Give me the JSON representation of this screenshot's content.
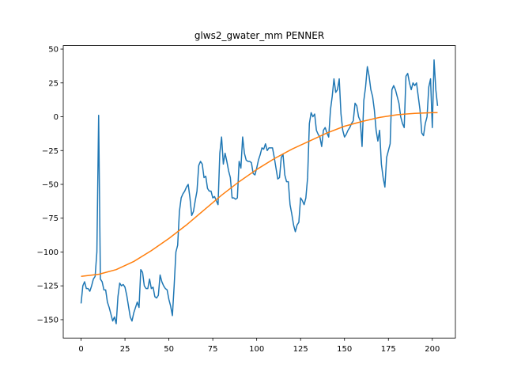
{
  "chart_data": {
    "type": "line",
    "title": "glws2_gwater_mm PENNER",
    "x": [
      0,
      1,
      2,
      3,
      4,
      5,
      6,
      7,
      8,
      9,
      10,
      11,
      12,
      13,
      14,
      15,
      16,
      17,
      18,
      19,
      20,
      21,
      22,
      23,
      24,
      25,
      26,
      27,
      28,
      29,
      30,
      31,
      32,
      33,
      34,
      35,
      36,
      37,
      38,
      39,
      40,
      41,
      42,
      43,
      44,
      45,
      46,
      47,
      48,
      49,
      50,
      51,
      52,
      53,
      54,
      55,
      56,
      57,
      58,
      59,
      60,
      61,
      62,
      63,
      64,
      65,
      66,
      67,
      68,
      69,
      70,
      71,
      72,
      73,
      74,
      75,
      76,
      77,
      78,
      79,
      80,
      81,
      82,
      83,
      84,
      85,
      86,
      87,
      88,
      89,
      90,
      91,
      92,
      93,
      94,
      95,
      96,
      97,
      98,
      99,
      100,
      101,
      102,
      103,
      104,
      105,
      106,
      107,
      108,
      109,
      110,
      111,
      112,
      113,
      114,
      115,
      116,
      117,
      118,
      119,
      120,
      121,
      122,
      123,
      124,
      125,
      126,
      127,
      128,
      129,
      130,
      131,
      132,
      133,
      134,
      135,
      136,
      137,
      138,
      139,
      140,
      141,
      142,
      143,
      144,
      145,
      146,
      147,
      148,
      149,
      150,
      151,
      152,
      153,
      154,
      155,
      156,
      157,
      158,
      159,
      160,
      161,
      162,
      163,
      164,
      165,
      166,
      167,
      168,
      169,
      170,
      171,
      172,
      173,
      174,
      175,
      176,
      177,
      178,
      179,
      180,
      181,
      182,
      183,
      184,
      185,
      186,
      187,
      188,
      189,
      190,
      191,
      192,
      193,
      194,
      195,
      196,
      197,
      198,
      199,
      200,
      201,
      202,
      203
    ],
    "series": [
      {
        "color": "#1f77b4",
        "values": [
          -138,
          -125,
          -122,
          -127,
          -127,
          -129,
          -125,
          -120,
          -118,
          -100,
          1,
          -120,
          -122,
          -128,
          -128,
          -137,
          -141,
          -146,
          -151,
          -148,
          -153,
          -133,
          -123,
          -125,
          -124,
          -126,
          -132,
          -140,
          -148,
          -151,
          -145,
          -141,
          -137,
          -141,
          -113,
          -115,
          -125,
          -127,
          -127,
          -120,
          -127,
          -126,
          -133,
          -134,
          -132,
          -117,
          -122,
          -125,
          -127,
          -128,
          -135,
          -140,
          -147,
          -125,
          -100,
          -95,
          -70,
          -60,
          -57,
          -55,
          -52,
          -50,
          -60,
          -73,
          -70,
          -62,
          -55,
          -36,
          -33,
          -35,
          -45,
          -44,
          -53,
          -55,
          -55,
          -60,
          -59,
          -62,
          -65,
          -27,
          -15,
          -35,
          -27,
          -33,
          -40,
          -45,
          -60,
          -60,
          -61,
          -60,
          -33,
          -38,
          -15,
          -27,
          -32,
          -33,
          -33,
          -34,
          -42,
          -43,
          -38,
          -32,
          -28,
          -23,
          -24,
          -20,
          -25,
          -23,
          -23,
          -23,
          -30,
          -38,
          -46,
          -45,
          -30,
          -28,
          -43,
          -48,
          -48,
          -65,
          -72,
          -80,
          -85,
          -80,
          -78,
          -60,
          -62,
          -65,
          -60,
          -45,
          -5,
          3,
          0,
          2,
          -10,
          -13,
          -15,
          -22,
          -10,
          -8,
          -12,
          -15,
          5,
          15,
          28,
          18,
          20,
          28,
          2,
          -10,
          -15,
          -13,
          -10,
          -8,
          -5,
          -3,
          10,
          8,
          0,
          -3,
          -22,
          12,
          22,
          37,
          30,
          20,
          15,
          5,
          -10,
          -18,
          -10,
          -35,
          -45,
          -52,
          -30,
          -25,
          -20,
          20,
          23,
          20,
          15,
          10,
          0,
          -5,
          -8,
          30,
          32,
          25,
          20,
          25,
          23,
          25,
          15,
          5,
          -12,
          -14,
          -5,
          0,
          22,
          28,
          -8,
          42,
          20,
          8
        ]
      },
      {
        "color": "#ff7f0e",
        "x": [
          0,
          10,
          20,
          30,
          40,
          50,
          60,
          70,
          80,
          90,
          100,
          110,
          120,
          130,
          140,
          150,
          160,
          170,
          180,
          190,
          200,
          203
        ],
        "values": [
          -118,
          -116.5,
          -113,
          -107,
          -99,
          -90,
          -80,
          -69,
          -58,
          -48,
          -39,
          -31,
          -24,
          -18,
          -12,
          -7,
          -3.5,
          -0.5,
          1.5,
          2.5,
          3,
          3
        ]
      }
    ],
    "xlim": [
      -10.15,
      213.15
    ],
    "xticks": [
      0,
      25,
      50,
      75,
      100,
      125,
      150,
      175,
      200
    ],
    "ylim": [
      -163.6,
      52.6
    ],
    "yticks": [
      {
        "value": -150,
        "label": "−150"
      },
      {
        "value": -125,
        "label": "−125"
      },
      {
        "value": -100,
        "label": "−100"
      },
      {
        "value": -75,
        "label": "−75"
      },
      {
        "value": -50,
        "label": "−50"
      },
      {
        "value": -25,
        "label": "−25"
      },
      0,
      25,
      50
    ]
  }
}
